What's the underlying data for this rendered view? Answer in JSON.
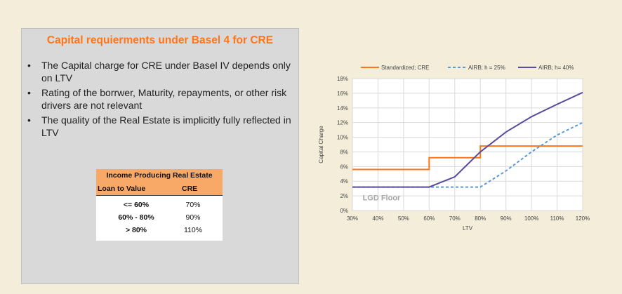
{
  "panel": {
    "title": "Capital requierments under Basel 4 for CRE",
    "bullets": [
      "The Capital charge for CRE under Basel IV depends only on LTV",
      "Rating of the borrwer, Maturity, repayments, or other risk drivers are not relevant",
      "The quality of the Real Estate is implicitly fully reflected in LTV"
    ]
  },
  "table": {
    "title": "Income Producing Real Estate",
    "col1": "Loan to Value",
    "col2": "CRE",
    "rows": [
      {
        "ltv": "<= 60%",
        "cre": "70%"
      },
      {
        "ltv": "60% - 80%",
        "cre": "90%"
      },
      {
        "ltv": "> 80%",
        "cre": "110%"
      }
    ]
  },
  "chart_data": {
    "type": "line",
    "title": "",
    "xlabel": "LTV",
    "ylabel": "Capital Charge",
    "annotation": "LGD Floor",
    "xlim": [
      0.3,
      1.2
    ],
    "ylim": [
      0,
      0.18
    ],
    "x_ticks": [
      "30%",
      "40%",
      "50%",
      "60%",
      "70%",
      "80%",
      "90%",
      "100%",
      "110%",
      "120%"
    ],
    "y_ticks": [
      "0%",
      "2%",
      "4%",
      "6%",
      "8%",
      "10%",
      "12%",
      "14%",
      "16%",
      "18%"
    ],
    "legend": "top",
    "colors": {
      "standardized": "#ff7518",
      "airb25": "#5b9bd5",
      "airb40": "#5a4a9c"
    },
    "series": [
      {
        "name": "Standardized; CRE",
        "style": "solid",
        "color": "#ff7518",
        "x": [
          0.3,
          0.6,
          0.6,
          0.8,
          0.8,
          1.2
        ],
        "y": [
          0.056,
          0.056,
          0.072,
          0.072,
          0.088,
          0.088
        ]
      },
      {
        "name": "AIRB; h = 25%",
        "style": "dashed",
        "color": "#5b9bd5",
        "x": [
          0.3,
          0.8,
          0.9,
          1.0,
          1.1,
          1.2
        ],
        "y": [
          0.032,
          0.032,
          0.054,
          0.08,
          0.103,
          0.12
        ]
      },
      {
        "name": "AIRB; h= 40%",
        "style": "solid",
        "color": "#5a4a9c",
        "x": [
          0.3,
          0.6,
          0.7,
          0.8,
          0.9,
          1.0,
          1.1,
          1.2
        ],
        "y": [
          0.032,
          0.032,
          0.046,
          0.08,
          0.107,
          0.128,
          0.145,
          0.161
        ]
      }
    ]
  }
}
